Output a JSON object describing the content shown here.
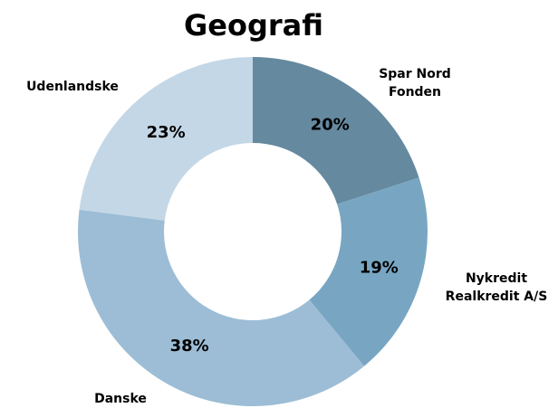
{
  "chart_data": {
    "type": "donut",
    "title": "Geografi",
    "categories": [
      "Spar Nord Fonden",
      "Nykredit Realkredit A/S",
      "Danske",
      "Udenlandske"
    ],
    "values": [
      20,
      19,
      38,
      23
    ],
    "value_labels": [
      "20%",
      "19%",
      "38%",
      "23%"
    ],
    "colors": [
      "#65899f",
      "#78a6c2",
      "#9cbdd5",
      "#c4d7e6"
    ]
  }
}
